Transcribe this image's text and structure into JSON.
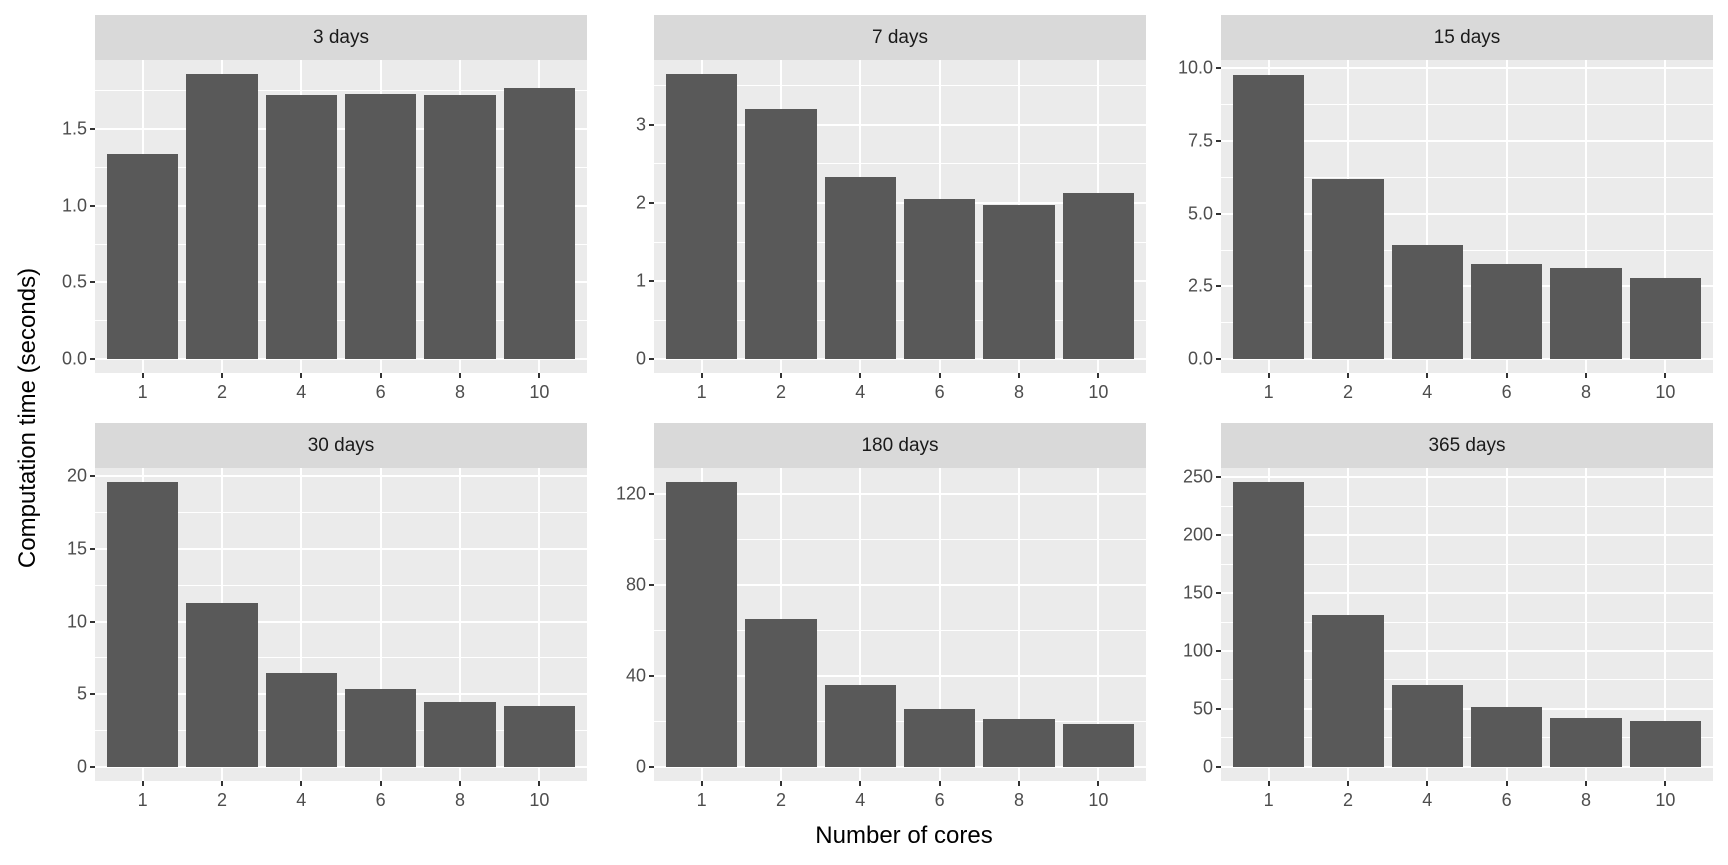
{
  "chart_data": {
    "type": "bar",
    "layout": "facet_wrap 2 rows x 3 columns, free y scales",
    "xlabel": "Number of cores",
    "ylabel": "Computation time (seconds)",
    "categories": [
      "1",
      "2",
      "4",
      "6",
      "8",
      "10"
    ],
    "grid": true,
    "legend": null,
    "colors": {
      "bar": "#595959",
      "panel_bg": "#EBEBEB",
      "strip_bg": "#D9D9D9",
      "grid": "#FFFFFF",
      "tick_text": "#4D4D4D"
    },
    "panels": [
      {
        "title": "3 days",
        "values": [
          1.34,
          1.86,
          1.72,
          1.73,
          1.72,
          1.77
        ],
        "ylim": [
          -0.091,
          1.95
        ],
        "yticks": [
          0.0,
          0.5,
          1.0,
          1.5
        ],
        "ytick_labels": [
          "0.0",
          "0.5",
          "1.0",
          "1.5"
        ],
        "minor": [
          0.25,
          0.75,
          1.25,
          1.75
        ]
      },
      {
        "title": "7 days",
        "values": [
          3.65,
          3.21,
          2.33,
          2.05,
          1.97,
          2.13
        ],
        "ylim": [
          -0.179,
          3.833
        ],
        "yticks": [
          0,
          1,
          2,
          3
        ],
        "ytick_labels": [
          "0",
          "1",
          "2",
          "3"
        ],
        "minor": [
          0.5,
          1.5,
          2.5,
          3.5
        ]
      },
      {
        "title": "15 days",
        "values": [
          9.79,
          6.18,
          3.94,
          3.26,
          3.12,
          2.78
        ],
        "ylim": [
          -0.48,
          10.29
        ],
        "yticks": [
          0.0,
          2.5,
          5.0,
          7.5,
          10.0
        ],
        "ytick_labels": [
          "0.0",
          "2.5",
          "5.0",
          "7.5",
          "10.0"
        ],
        "minor": [
          1.25,
          3.75,
          6.25,
          8.75
        ]
      },
      {
        "title": "30 days",
        "values": [
          19.6,
          11.3,
          6.44,
          5.34,
          4.45,
          4.17
        ],
        "ylim": [
          -0.96,
          20.55
        ],
        "yticks": [
          0,
          5,
          10,
          15,
          20
        ],
        "ytick_labels": [
          "0",
          "5",
          "10",
          "15",
          "20"
        ],
        "minor": [
          2.5,
          7.5,
          12.5,
          17.5
        ]
      },
      {
        "title": "180 days",
        "values": [
          125.4,
          65.1,
          36.0,
          25.4,
          21.0,
          18.8
        ],
        "ylim": [
          -6.15,
          131.4
        ],
        "yticks": [
          0,
          40,
          80,
          120
        ],
        "ytick_labels": [
          "0",
          "40",
          "80",
          "120"
        ],
        "minor": [
          20,
          60,
          100
        ]
      },
      {
        "title": "365 days",
        "values": [
          245.7,
          130.9,
          70.5,
          51.5,
          42.0,
          39.4
        ],
        "ylim": [
          -12.1,
          257.8
        ],
        "yticks": [
          0,
          50,
          100,
          150,
          200,
          250
        ],
        "ytick_labels": [
          "0",
          "50",
          "100",
          "150",
          "200",
          "250"
        ],
        "minor": [
          25,
          75,
          125,
          175,
          225
        ]
      }
    ]
  },
  "labels": {
    "xlabel": "Number of cores",
    "ylabel": "Computation time (seconds)"
  }
}
